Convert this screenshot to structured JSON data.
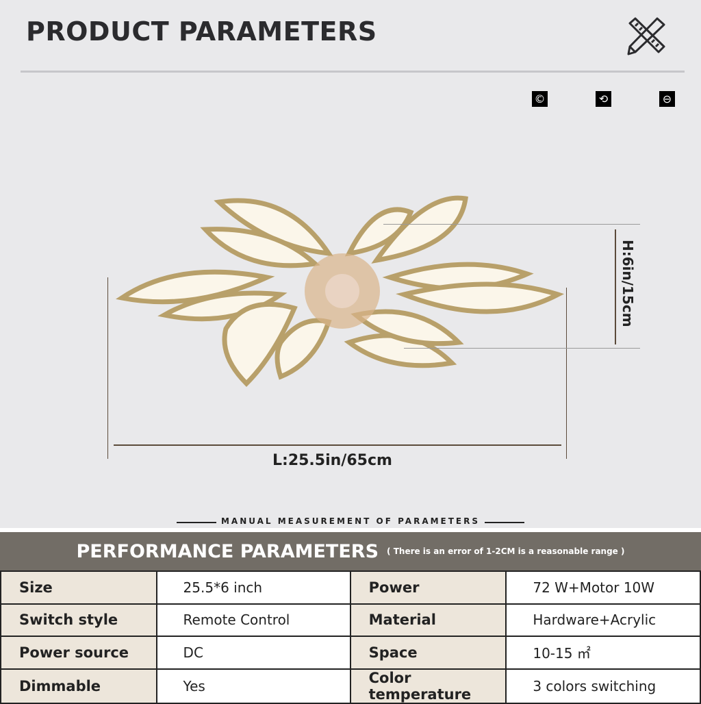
{
  "header": {
    "title": "PRODUCT PARAMETERS",
    "tool_icon": "ruler-pencil-icon"
  },
  "badges": [
    {
      "icon": "copyright-icon",
      "glyph": "©"
    },
    {
      "icon": "refresh-icon",
      "glyph": "⟲"
    },
    {
      "icon": "minus-circle-icon",
      "glyph": "⊖"
    }
  ],
  "dimensions": {
    "length": "L:25.5in/65cm",
    "height": "H:6in/15cm",
    "note": "MANUAL MEASUREMENT OF PARAMETERS"
  },
  "performance": {
    "title": "PERFORMANCE PARAMETERS",
    "subtitle": "( There is an error of 1-2CM is a reasonable range )",
    "rows": [
      [
        "Size",
        "25.5*6 inch",
        "Power",
        "72 W+Motor 10W"
      ],
      [
        "Switch style",
        "Remote Control",
        "Material",
        "Hardware+Acrylic"
      ],
      [
        "Power source",
        "DC",
        "Space",
        "10-15 ㎡"
      ],
      [
        "Dimmable",
        "Yes",
        "Color temperature",
        "3 colors switching"
      ]
    ]
  },
  "colors": {
    "band": "#726d66",
    "key_cell": "#ede6db",
    "gold": "#b8a06a"
  }
}
